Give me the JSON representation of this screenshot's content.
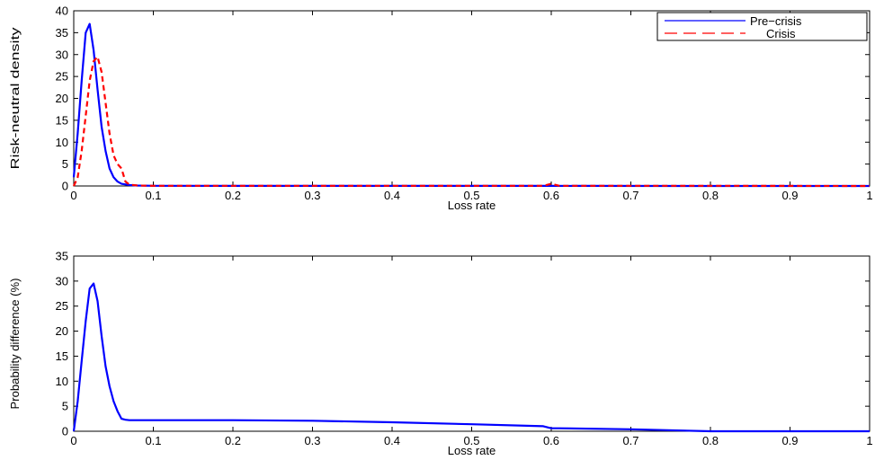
{
  "chart_data": [
    {
      "type": "line",
      "xlabel": "Loss rate",
      "ylabel": "Risk-neutral density",
      "xlim": [
        0,
        1
      ],
      "ylim": [
        0,
        40
      ],
      "xticks": [
        "0",
        "0.1",
        "0.2",
        "0.3",
        "0.4",
        "0.5",
        "0.6",
        "0.7",
        "0.8",
        "0.9",
        "1"
      ],
      "yticks": [
        "0",
        "5",
        "10",
        "15",
        "20",
        "25",
        "30",
        "35",
        "40"
      ],
      "grid": false,
      "legend": "top-right",
      "series": [
        {
          "name": "Pre−crisis",
          "color": "#0000ff",
          "style": "solid",
          "x": [
            0,
            0.005,
            0.01,
            0.015,
            0.02,
            0.025,
            0.03,
            0.035,
            0.04,
            0.045,
            0.05,
            0.055,
            0.06,
            0.07,
            0.08,
            0.1,
            0.2,
            0.4,
            0.6,
            0.8,
            1.0
          ],
          "y": [
            2,
            12,
            24,
            35,
            37,
            31,
            22,
            13.5,
            8,
            4,
            2,
            1,
            0.5,
            0.2,
            0.1,
            0.05,
            0.03,
            0.02,
            0.02,
            0.01,
            0
          ]
        },
        {
          "name": "Crisis",
          "color": "#ff0000",
          "style": "dashed",
          "x": [
            0,
            0.005,
            0.01,
            0.015,
            0.02,
            0.025,
            0.03,
            0.035,
            0.04,
            0.045,
            0.05,
            0.055,
            0.06,
            0.065,
            0.07,
            0.08,
            0.1,
            0.2,
            0.4,
            0.59,
            0.6,
            0.61,
            0.8,
            1.0
          ],
          "y": [
            0,
            2,
            8,
            16,
            24,
            28.5,
            29.5,
            26,
            19,
            12,
            7,
            5,
            4,
            1,
            0.3,
            0.1,
            0.05,
            0.05,
            0.05,
            0.05,
            0.5,
            0.05,
            0.05,
            0
          ]
        }
      ]
    },
    {
      "type": "line",
      "xlabel": "Loss rate",
      "ylabel": "Probability difference (%)",
      "xlim": [
        0,
        1
      ],
      "ylim": [
        0,
        35
      ],
      "xticks": [
        "0",
        "0.1",
        "0.2",
        "0.3",
        "0.4",
        "0.5",
        "0.6",
        "0.7",
        "0.8",
        "0.9",
        "1"
      ],
      "yticks": [
        "0",
        "5",
        "10",
        "15",
        "20",
        "25",
        "30",
        "35"
      ],
      "grid": false,
      "series": [
        {
          "name": "",
          "color": "#0000ff",
          "style": "solid",
          "x": [
            0,
            0.005,
            0.01,
            0.015,
            0.02,
            0.025,
            0.03,
            0.035,
            0.04,
            0.045,
            0.05,
            0.055,
            0.06,
            0.065,
            0.07,
            0.08,
            0.1,
            0.2,
            0.3,
            0.4,
            0.5,
            0.59,
            0.6,
            0.61,
            0.7,
            0.8,
            0.9,
            1.0
          ],
          "y": [
            0,
            6,
            14,
            22,
            28.5,
            29.5,
            26,
            19,
            13,
            9,
            6,
            4,
            2.5,
            2.3,
            2.2,
            2.2,
            2.2,
            2.2,
            2.1,
            1.8,
            1.4,
            1.0,
            0.6,
            0.6,
            0.4,
            0.0,
            0.0,
            0.0
          ]
        }
      ]
    }
  ]
}
